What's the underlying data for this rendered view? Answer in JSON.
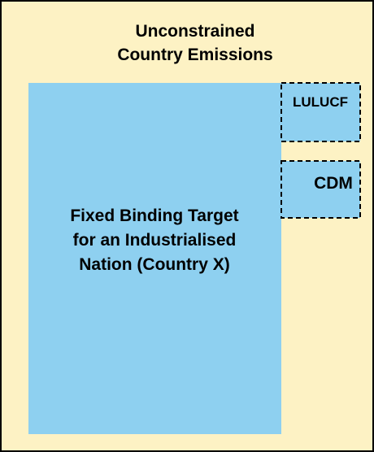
{
  "title": [
    "Unconstrained",
    "Country Emissions"
  ],
  "main_box": [
    "Fixed Binding Target",
    "for an Industrialised",
    "Nation (Country X)"
  ],
  "side_boxes": [
    "LULUCF",
    "CDM"
  ]
}
